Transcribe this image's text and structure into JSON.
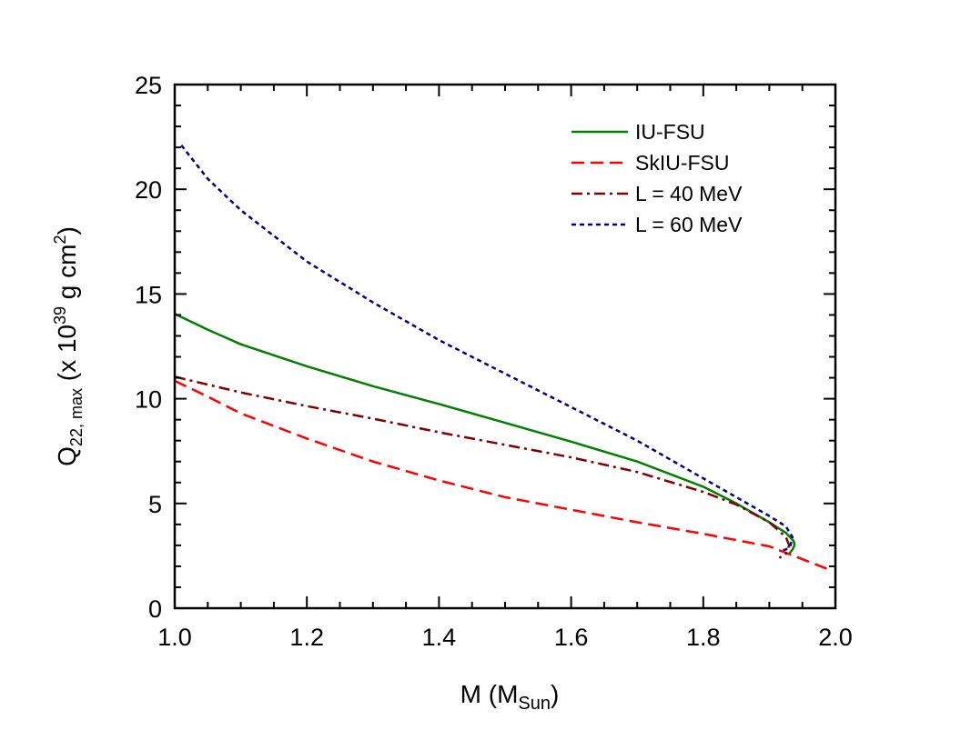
{
  "chart_data": {
    "type": "line",
    "xlabel_main": "M (M",
    "xlabel_sub": "Sun",
    "xlabel_close": ")",
    "ylabel_main": "Q",
    "ylabel_sub": "22, max",
    "ylabel_mid": " (x 10",
    "ylabel_sup": "39",
    "ylabel_mid2": " g cm",
    "ylabel_sup2": "2",
    "ylabel_close": ")",
    "xlim": [
      1.0,
      2.0
    ],
    "ylim": [
      0,
      25
    ],
    "x_ticks": [
      1.0,
      1.2,
      1.4,
      1.6,
      1.8,
      2.0
    ],
    "x_tick_labels": [
      "1.0",
      "1.2",
      "1.4",
      "1.6",
      "1.8",
      "2.0"
    ],
    "y_ticks": [
      0,
      5,
      10,
      15,
      20,
      25
    ],
    "y_tick_labels": [
      "0",
      "5",
      "10",
      "15",
      "20",
      "25"
    ],
    "grid": false,
    "legend_position": "top-right",
    "series": [
      {
        "name": "IU-FSU",
        "color": "#008000",
        "dash": "solid",
        "points": [
          [
            1.0,
            14.05
          ],
          [
            1.05,
            13.3
          ],
          [
            1.1,
            12.6
          ],
          [
            1.2,
            11.55
          ],
          [
            1.3,
            10.6
          ],
          [
            1.4,
            9.75
          ],
          [
            1.5,
            8.85
          ],
          [
            1.6,
            7.95
          ],
          [
            1.7,
            7.0
          ],
          [
            1.8,
            5.8
          ],
          [
            1.85,
            5.0
          ],
          [
            1.9,
            4.1
          ],
          [
            1.925,
            3.6
          ],
          [
            1.937,
            3.2
          ],
          [
            1.938,
            3.0
          ],
          [
            1.935,
            2.8
          ],
          [
            1.93,
            2.6
          ]
        ]
      },
      {
        "name": "SkIU-FSU",
        "color": "#ff0000",
        "dash": "dashed",
        "points": [
          [
            1.0,
            10.85
          ],
          [
            1.05,
            10.1
          ],
          [
            1.1,
            9.3
          ],
          [
            1.2,
            8.1
          ],
          [
            1.3,
            7.0
          ],
          [
            1.4,
            6.1
          ],
          [
            1.5,
            5.3
          ],
          [
            1.6,
            4.7
          ],
          [
            1.7,
            4.1
          ],
          [
            1.8,
            3.55
          ],
          [
            1.9,
            2.95
          ],
          [
            1.99,
            1.85
          ]
        ]
      },
      {
        "name": "L = 40 MeV",
        "color": "#800000",
        "dash": "dashdot",
        "points": [
          [
            1.0,
            11.05
          ],
          [
            1.1,
            10.3
          ],
          [
            1.2,
            9.65
          ],
          [
            1.3,
            9.05
          ],
          [
            1.4,
            8.4
          ],
          [
            1.5,
            7.8
          ],
          [
            1.6,
            7.2
          ],
          [
            1.7,
            6.5
          ],
          [
            1.8,
            5.55
          ],
          [
            1.85,
            4.95
          ],
          [
            1.9,
            4.1
          ],
          [
            1.925,
            3.4
          ],
          [
            1.93,
            3.0
          ],
          [
            1.925,
            2.6
          ],
          [
            1.915,
            2.4
          ]
        ]
      },
      {
        "name": "L = 60 MeV",
        "color": "#000080",
        "dash": "dotted",
        "points": [
          [
            1.01,
            22.1
          ],
          [
            1.05,
            20.5
          ],
          [
            1.1,
            19.0
          ],
          [
            1.2,
            16.55
          ],
          [
            1.3,
            14.6
          ],
          [
            1.4,
            12.8
          ],
          [
            1.5,
            11.2
          ],
          [
            1.6,
            9.6
          ],
          [
            1.7,
            8.0
          ],
          [
            1.8,
            6.2
          ],
          [
            1.85,
            5.3
          ],
          [
            1.9,
            4.4
          ],
          [
            1.925,
            3.9
          ],
          [
            1.935,
            3.4
          ],
          [
            1.932,
            3.0
          ],
          [
            1.925,
            2.8
          ],
          [
            1.915,
            2.75
          ]
        ]
      }
    ]
  }
}
